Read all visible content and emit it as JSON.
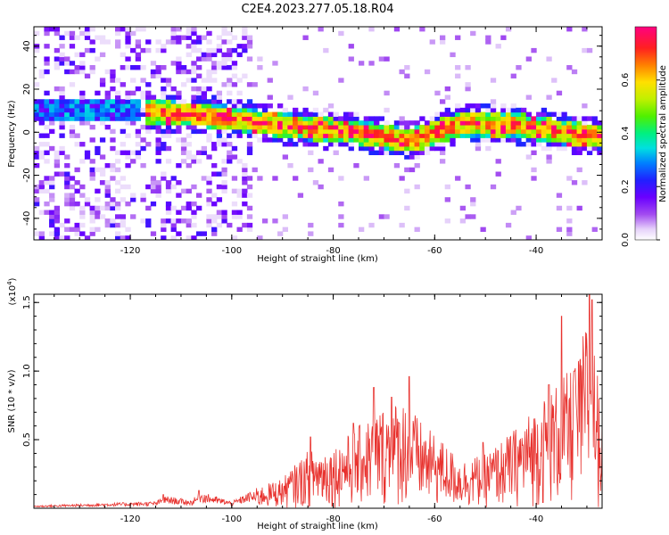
{
  "title": "C2E4.2023.277.05.18.R04",
  "chart_data": [
    {
      "type": "heatmap",
      "xlabel": "Height of straight line (km)",
      "ylabel": "Frequency (Hz)",
      "xlim": [
        -139,
        -27
      ],
      "ylim": [
        -50,
        49
      ],
      "xticks": [
        -120,
        -100,
        -80,
        -60,
        -40
      ],
      "yticks": [
        -40,
        -20,
        0,
        20,
        40
      ],
      "colorbar": {
        "label": "Normalized spectral amplitude",
        "range": [
          0.0,
          0.8
        ],
        "ticks": [
          0.0,
          0.2,
          0.4,
          0.6
        ]
      },
      "band_center_hz": [
        {
          "x": -138,
          "y": 10
        },
        {
          "x": -120,
          "y": 10
        },
        {
          "x": -105,
          "y": 8
        },
        {
          "x": -95,
          "y": 5
        },
        {
          "x": -85,
          "y": 2
        },
        {
          "x": -75,
          "y": 0
        },
        {
          "x": -65,
          "y": -4
        },
        {
          "x": -55,
          "y": 4
        },
        {
          "x": -45,
          "y": 4
        },
        {
          "x": -35,
          "y": 0
        },
        {
          "x": -27,
          "y": -2
        }
      ],
      "noise_region_x": [
        -139,
        -96
      ]
    },
    {
      "type": "line",
      "xlabel": "Height of straight line (km)",
      "ylabel": "SNR (10 * v/v)",
      "yexp": "(x10",
      "yexp_sup": "4",
      "yexp_close": ")",
      "xlim": [
        -139,
        -27
      ],
      "ylim": [
        0,
        1.56
      ],
      "xticks": [
        -120,
        -100,
        -80,
        -60,
        -40
      ],
      "yticks": [
        0.5,
        1.0,
        1.5
      ],
      "ytick_labels": [
        "0.5",
        "1.0",
        "1.5"
      ],
      "series_color": "#e8322e",
      "envelope": [
        {
          "x": -139,
          "y": 0.02
        },
        {
          "x": -115,
          "y": 0.05
        },
        {
          "x": -113,
          "y": 0.09
        },
        {
          "x": -108,
          "y": 0.06
        },
        {
          "x": -106,
          "y": 0.12
        },
        {
          "x": -100,
          "y": 0.05
        },
        {
          "x": -95,
          "y": 0.15
        },
        {
          "x": -90,
          "y": 0.22
        },
        {
          "x": -85,
          "y": 0.42
        },
        {
          "x": -80,
          "y": 0.45
        },
        {
          "x": -75,
          "y": 0.6
        },
        {
          "x": -70,
          "y": 0.75
        },
        {
          "x": -66,
          "y": 0.8
        },
        {
          "x": -62,
          "y": 0.6
        },
        {
          "x": -58,
          "y": 0.48
        },
        {
          "x": -55,
          "y": 0.35
        },
        {
          "x": -50,
          "y": 0.4
        },
        {
          "x": -45,
          "y": 0.55
        },
        {
          "x": -40,
          "y": 0.75
        },
        {
          "x": -35,
          "y": 0.95
        },
        {
          "x": -32,
          "y": 1.05
        },
        {
          "x": -29.5,
          "y": 1.5
        },
        {
          "x": -27,
          "y": 0.7
        }
      ],
      "peaks": [
        {
          "x": -113.5,
          "y": 0.1
        },
        {
          "x": -106.5,
          "y": 0.13
        },
        {
          "x": -84.5,
          "y": 0.52
        },
        {
          "x": -76,
          "y": 0.62
        },
        {
          "x": -72,
          "y": 0.88
        },
        {
          "x": -68.5,
          "y": 0.81
        },
        {
          "x": -65,
          "y": 0.96
        },
        {
          "x": -50.5,
          "y": 0.48
        },
        {
          "x": -37.5,
          "y": 0.9
        },
        {
          "x": -35,
          "y": 1.4
        },
        {
          "x": -32.5,
          "y": 1.0
        },
        {
          "x": -29.5,
          "y": 1.56
        },
        {
          "x": -29,
          "y": 1.52
        }
      ]
    }
  ]
}
